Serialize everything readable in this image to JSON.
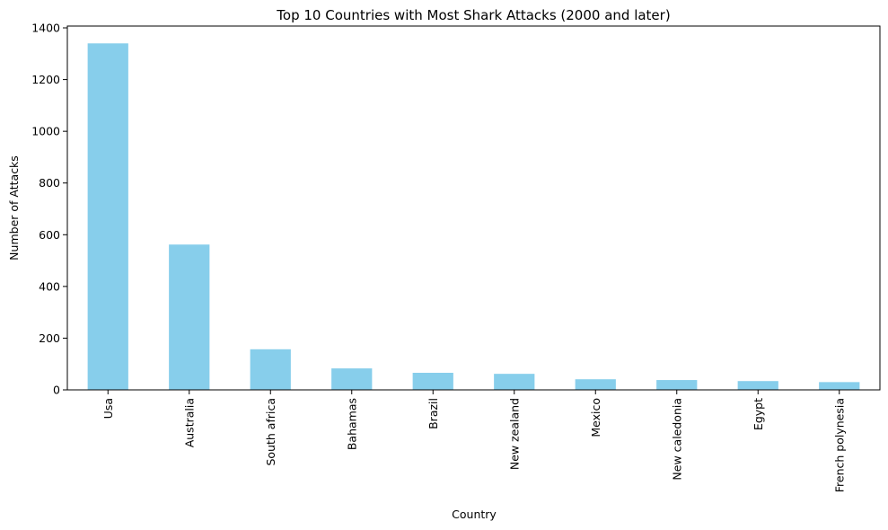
{
  "chart_data": {
    "type": "bar",
    "title": "Top 10 Countries with Most Shark Attacks (2000 and later)",
    "xlabel": "Country",
    "ylabel": "Number of Attacks",
    "categories": [
      "Usa",
      "Australia",
      "South africa",
      "Bahamas",
      "Brazil",
      "New zealand",
      "Mexico",
      "New caledonia",
      "Egypt",
      "French polynesia"
    ],
    "values": [
      1340,
      562,
      157,
      83,
      66,
      62,
      41,
      38,
      34,
      30
    ],
    "ylim": [
      0,
      1407
    ],
    "yticks": [
      0,
      200,
      400,
      600,
      800,
      1000,
      1200,
      1400
    ],
    "bar_color": "#87ceeb",
    "grid": false,
    "legend": "none"
  }
}
